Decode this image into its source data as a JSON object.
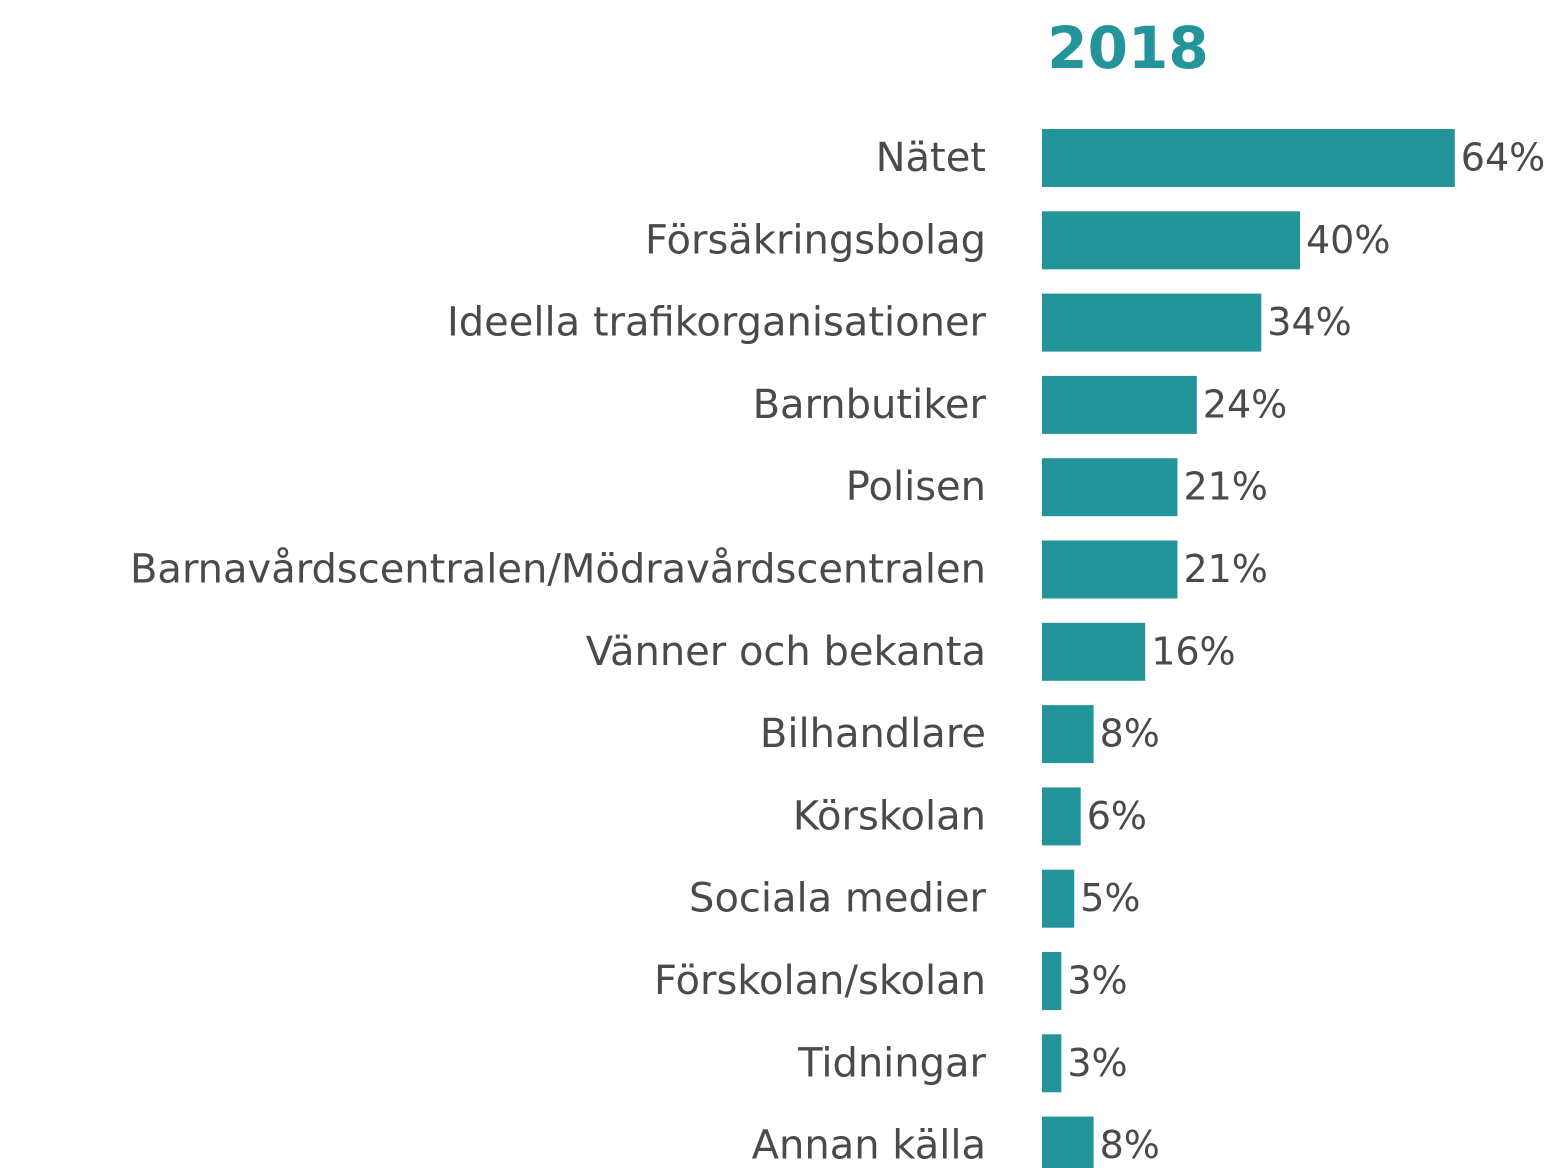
{
  "chart_data": {
    "type": "barh",
    "title": "2018",
    "categories": [
      "Nätet",
      "Försäkringsbolag",
      "Ideella trafikorganisationer",
      "Barnbutiker",
      "Polisen",
      "Barnavårdscentralen/Mödravårdscentralen",
      "Vänner och bekanta",
      "Bilhandlare",
      "Körskolan",
      "Sociala medier",
      "Förskolan/skolan",
      "Tidningar",
      "Annan källa"
    ],
    "values": [
      64,
      40,
      34,
      24,
      21,
      21,
      16,
      8,
      6,
      5,
      3,
      3,
      8
    ],
    "value_labels": [
      "64%",
      "40%",
      "34%",
      "24%",
      "21%",
      "21%",
      "16%",
      "8%",
      "6%",
      "5%",
      "3%",
      "3%",
      "8%"
    ],
    "color": "#23949a"
  }
}
